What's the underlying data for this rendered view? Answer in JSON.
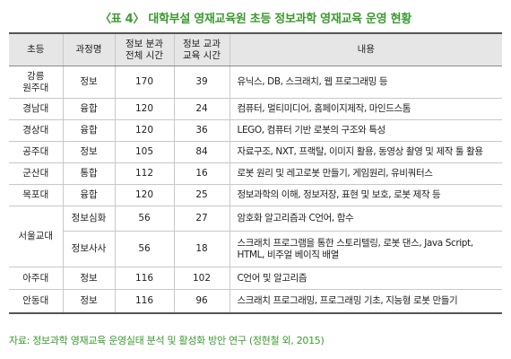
{
  "title": "〈표 4〉 대학부설 영재교육원 초등 정보과학 영재교육 운영 현황",
  "headers": {
    "school": "초등",
    "course": "과정명",
    "total_time_l1": "정보 분과",
    "total_time_l2": "전체 시간",
    "edu_time_l1": "정보 교과",
    "edu_time_l2": "교육 시간",
    "content": "내용"
  },
  "rows": [
    {
      "school_l1": "강릉",
      "school_l2": "원주대",
      "course": "정보",
      "total": "170",
      "edu": "39",
      "content": "유닉스, DB, 스크래치, 웹 프로그래밍 등"
    },
    {
      "school": "경남대",
      "course": "융합",
      "total": "120",
      "edu": "24",
      "content": "컴퓨터, 멀티미디어, 홈페이지제작, 마인드스톰"
    },
    {
      "school": "경상대",
      "course": "융합",
      "total": "120",
      "edu": "36",
      "content": "LEGO, 컴퓨터 기반 로봇의 구조와 특성"
    },
    {
      "school": "공주대",
      "course": "정보",
      "total": "105",
      "edu": "84",
      "content": "자료구조, NXT, 프랙탈, 이미지 활용, 동영상 촬영 및 제작 툴 활용"
    },
    {
      "school": "군산대",
      "course": "통합",
      "total": "112",
      "edu": "16",
      "content": "로봇 원리 및 레고로봇 만들기, 게임원리, 유비쿼터스"
    },
    {
      "school": "목포대",
      "course": "융합",
      "total": "120",
      "edu": "25",
      "content": "정보과학의 이해, 정보저장, 표현 및 보호, 로봇 제작 등"
    },
    {
      "school": "서울교대",
      "course": "정보심화",
      "total": "56",
      "edu": "27",
      "content": "암호화 알고리즘과 C언어, 함수"
    },
    {
      "course": "정보사사",
      "total": "56",
      "edu": "18",
      "content_l1": "스크래치 프로그램을 통한 스토리텔링, 로봇 댄스, Java Script,",
      "content_l2": "HTML, 비주얼 베이직 배열"
    },
    {
      "school": "아주대",
      "course": "정보",
      "total": "116",
      "edu": "102",
      "content": "C언어 및 알고리즘"
    },
    {
      "school": "안동대",
      "course": "정보",
      "total": "116",
      "edu": "96",
      "content": "스크래치 프로그래밍, 프로그래밍 기초, 지능형 로봇 만들기"
    }
  ],
  "source": "자료: 정보과학 영재교육 운영실태 분석 및 활성화 방안 연구 (정현철 외, 2015)",
  "colors": {
    "accent": "#3a9a2e",
    "header_bg": "#e6e6e6",
    "rule": "#555555",
    "grid": "#c8c8c8"
  }
}
